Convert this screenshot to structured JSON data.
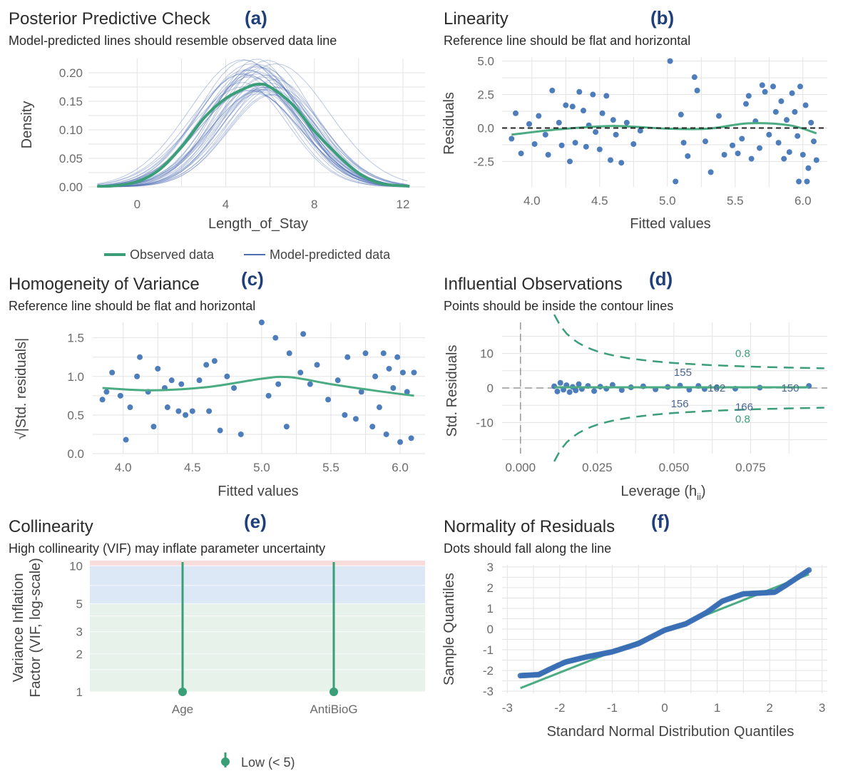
{
  "colors": {
    "observed": "#3a9e78",
    "predicted": "#4f6fb3",
    "points": "#3b6fb5",
    "smooth": "#4bab82",
    "contour": "#3a9e78",
    "text_dark": "#2b2b2b",
    "tag": "#1f3f7a",
    "zone_low": "#e6f2ea",
    "zone_mid": "#dde8f6",
    "zone_high": "#f8dcdc"
  },
  "chart_data": [
    {
      "panel": "(a)",
      "type": "line",
      "title": "Posterior Predictive Check",
      "subtitle": "Model-predicted lines should resemble observed data line",
      "xlabel": "Length_of_Stay",
      "ylabel": "Density",
      "xlim": [
        -2.2,
        13
      ],
      "ylim": [
        0,
        0.225
      ],
      "xticks": [
        0,
        4,
        8,
        12
      ],
      "yticks": [
        "0.00",
        "0.05",
        "0.10",
        "0.15",
        "0.20"
      ],
      "grid": true,
      "observed": {
        "x": [
          -1.8,
          -1,
          0,
          1,
          2,
          3,
          4,
          5,
          5.5,
          6,
          7,
          8,
          9,
          10,
          11,
          12.3
        ],
        "y": [
          0.001,
          0.002,
          0.009,
          0.03,
          0.07,
          0.12,
          0.155,
          0.175,
          0.18,
          0.175,
          0.145,
          0.098,
          0.058,
          0.024,
          0.006,
          0.001
        ]
      },
      "predicted_draws": 38,
      "legend": [
        "Observed data",
        "Model-predicted data"
      ],
      "legend_position": "bottom"
    },
    {
      "panel": "(b)",
      "type": "scatter",
      "title": "Linearity",
      "subtitle": "Reference line should be flat and horizontal",
      "xlabel": "Fitted values",
      "ylabel": "Residuals",
      "xlim": [
        3.78,
        6.18
      ],
      "ylim": [
        -4.4,
        5.3
      ],
      "xticks": [
        "4.0",
        "4.5",
        "5.0",
        "5.5",
        "6.0"
      ],
      "yticks": [
        "-2.5",
        "0.0",
        "2.5",
        "5.0"
      ],
      "reference_line": 0,
      "grid": true,
      "points": [
        [
          3.85,
          -0.8
        ],
        [
          3.88,
          1.1
        ],
        [
          3.92,
          -1.9
        ],
        [
          3.98,
          0.3
        ],
        [
          4.02,
          -1.2
        ],
        [
          4.05,
          0.9
        ],
        [
          4.1,
          -0.5
        ],
        [
          4.12,
          -2.0
        ],
        [
          4.15,
          2.8
        ],
        [
          4.2,
          0.4
        ],
        [
          4.22,
          -1.3
        ],
        [
          4.25,
          1.7
        ],
        [
          4.28,
          -2.5
        ],
        [
          4.3,
          1.6
        ],
        [
          4.32,
          -1.1
        ],
        [
          4.35,
          2.7
        ],
        [
          4.38,
          1.3
        ],
        [
          4.4,
          -1.4
        ],
        [
          4.42,
          0.2
        ],
        [
          4.45,
          2.5
        ],
        [
          4.47,
          -0.3
        ],
        [
          4.5,
          -1.6
        ],
        [
          4.52,
          1.1
        ],
        [
          4.55,
          2.4
        ],
        [
          4.58,
          -2.4
        ],
        [
          4.6,
          0.6
        ],
        [
          4.62,
          -0.5
        ],
        [
          4.66,
          -2.6
        ],
        [
          4.7,
          0.4
        ],
        [
          4.75,
          -1.2
        ],
        [
          4.8,
          -0.2
        ],
        [
          5.02,
          5.0
        ],
        [
          5.06,
          -4.0
        ],
        [
          5.1,
          1.0
        ],
        [
          5.12,
          -1.1
        ],
        [
          5.15,
          -2.1
        ],
        [
          5.2,
          3.8
        ],
        [
          5.22,
          2.8
        ],
        [
          5.28,
          -1.0
        ],
        [
          5.32,
          -3.3
        ],
        [
          5.38,
          0.9
        ],
        [
          5.42,
          -2.0
        ],
        [
          5.48,
          -1.3
        ],
        [
          5.52,
          -1.9
        ],
        [
          5.55,
          -0.8
        ],
        [
          5.58,
          1.8
        ],
        [
          5.6,
          2.4
        ],
        [
          5.62,
          -2.3
        ],
        [
          5.65,
          0.5
        ],
        [
          5.68,
          -1.5
        ],
        [
          5.7,
          3.2
        ],
        [
          5.72,
          2.7
        ],
        [
          5.75,
          -0.5
        ],
        [
          5.78,
          3.1
        ],
        [
          5.8,
          1.2
        ],
        [
          5.82,
          -1.1
        ],
        [
          5.84,
          2.0
        ],
        [
          5.86,
          -2.3
        ],
        [
          5.88,
          0.6
        ],
        [
          5.9,
          -1.8
        ],
        [
          5.92,
          2.6
        ],
        [
          5.94,
          1.2
        ],
        [
          5.96,
          -0.6
        ],
        [
          5.98,
          3.1
        ],
        [
          6.0,
          -2.0
        ],
        [
          6.02,
          1.7
        ],
        [
          6.04,
          -3.0
        ],
        [
          6.06,
          0.4
        ],
        [
          6.08,
          -1.0
        ],
        [
          6.1,
          -2.4
        ],
        [
          5.97,
          -4.0
        ],
        [
          6.03,
          -4.0
        ]
      ],
      "smooth": {
        "x": [
          3.85,
          4.2,
          4.6,
          5.0,
          5.3,
          5.6,
          5.9,
          6.1
        ],
        "y": [
          -0.5,
          -0.1,
          0.15,
          -0.05,
          -0.05,
          0.35,
          0.2,
          -0.4
        ]
      }
    },
    {
      "panel": "(c)",
      "type": "scatter",
      "title": "Homogeneity of Variance",
      "subtitle": "Reference line should be flat and horizontal",
      "xlabel": "Fitted values",
      "ylabel": "√|Std. residuals|",
      "xlim": [
        3.78,
        6.18
      ],
      "ylim": [
        0,
        1.7
      ],
      "xticks": [
        "4.0",
        "4.5",
        "5.0",
        "5.5",
        "6.0"
      ],
      "yticks": [
        "0.0",
        "0.5",
        "1.0",
        "1.5"
      ],
      "grid": true,
      "points": [
        [
          3.85,
          0.7
        ],
        [
          3.88,
          0.8
        ],
        [
          3.92,
          1.05
        ],
        [
          3.98,
          0.75
        ],
        [
          4.02,
          0.18
        ],
        [
          4.05,
          0.6
        ],
        [
          4.1,
          1.0
        ],
        [
          4.12,
          1.25
        ],
        [
          4.18,
          0.8
        ],
        [
          4.22,
          0.35
        ],
        [
          4.25,
          1.1
        ],
        [
          4.3,
          0.85
        ],
        [
          4.32,
          0.6
        ],
        [
          4.35,
          0.95
        ],
        [
          4.4,
          0.55
        ],
        [
          4.42,
          0.9
        ],
        [
          4.45,
          0.5
        ],
        [
          4.5,
          0.55
        ],
        [
          4.55,
          0.95
        ],
        [
          4.6,
          1.15
        ],
        [
          4.62,
          0.55
        ],
        [
          4.66,
          1.2
        ],
        [
          4.7,
          0.3
        ],
        [
          4.75,
          1.0
        ],
        [
          4.8,
          0.85
        ],
        [
          4.85,
          0.25
        ],
        [
          5.0,
          1.7
        ],
        [
          5.05,
          0.75
        ],
        [
          5.1,
          1.5
        ],
        [
          5.12,
          0.9
        ],
        [
          5.18,
          0.35
        ],
        [
          5.2,
          1.3
        ],
        [
          5.28,
          1.05
        ],
        [
          5.3,
          1.55
        ],
        [
          5.35,
          0.9
        ],
        [
          5.4,
          1.15
        ],
        [
          5.48,
          0.7
        ],
        [
          5.55,
          0.95
        ],
        [
          5.6,
          0.5
        ],
        [
          5.62,
          1.25
        ],
        [
          5.68,
          0.45
        ],
        [
          5.72,
          0.8
        ],
        [
          5.75,
          1.3
        ],
        [
          5.8,
          0.35
        ],
        [
          5.82,
          1.0
        ],
        [
          5.85,
          0.6
        ],
        [
          5.88,
          1.3
        ],
        [
          5.9,
          0.25
        ],
        [
          5.92,
          1.1
        ],
        [
          5.95,
          0.85
        ],
        [
          5.98,
          1.25
        ],
        [
          6.0,
          0.15
        ],
        [
          6.02,
          1.05
        ],
        [
          6.05,
          0.8
        ],
        [
          6.08,
          0.2
        ],
        [
          6.1,
          1.05
        ]
      ],
      "smooth": {
        "x": [
          3.85,
          4.2,
          4.6,
          5.0,
          5.2,
          5.5,
          5.8,
          6.1
        ],
        "y": [
          0.85,
          0.82,
          0.86,
          0.97,
          0.99,
          0.9,
          0.82,
          0.75
        ]
      }
    },
    {
      "panel": "(d)",
      "type": "scatter",
      "title": "Influential Observations",
      "subtitle": "Points should be inside the contour lines",
      "xlabel": "Leverage (h",
      "xlabel_subscript": "ii",
      "xlabel_close": ")",
      "ylabel": "Std. Residuals",
      "xlim": [
        -0.006,
        0.1
      ],
      "ylim": [
        -19,
        19
      ],
      "xticks": [
        "0.000",
        "0.025",
        "0.050",
        "0.075"
      ],
      "yticks": [
        "-10",
        "0",
        "10"
      ],
      "contour_label": "0.8",
      "labels": [
        {
          "text": "155",
          "x": 0.05,
          "y": 4.5
        },
        {
          "text": "162",
          "x": 0.061,
          "y": 0
        },
        {
          "text": "150",
          "x": 0.085,
          "y": 0
        },
        {
          "text": "156",
          "x": 0.049,
          "y": -4.5
        },
        {
          "text": "166",
          "x": 0.07,
          "y": -5.5
        }
      ],
      "points": [
        [
          0.011,
          0.5
        ],
        [
          0.012,
          -1
        ],
        [
          0.013,
          1.5
        ],
        [
          0.014,
          -0.5
        ],
        [
          0.015,
          0.8
        ],
        [
          0.016,
          -1.2
        ],
        [
          0.017,
          0.3
        ],
        [
          0.018,
          -0.7
        ],
        [
          0.019,
          1.1
        ],
        [
          0.02,
          -0.3
        ],
        [
          0.022,
          0.6
        ],
        [
          0.024,
          -0.9
        ],
        [
          0.026,
          0.4
        ],
        [
          0.028,
          -0.2
        ],
        [
          0.03,
          0.9
        ],
        [
          0.033,
          -0.6
        ],
        [
          0.036,
          0.2
        ],
        [
          0.04,
          0.5
        ],
        [
          0.044,
          -0.4
        ],
        [
          0.048,
          0.3
        ],
        [
          0.052,
          0.7
        ],
        [
          0.055,
          -0.5
        ],
        [
          0.058,
          0.6
        ],
        [
          0.06,
          -0.3
        ],
        [
          0.064,
          0.2
        ],
        [
          0.07,
          -0.2
        ],
        [
          0.078,
          0.1
        ],
        [
          0.094,
          0.6
        ]
      ]
    },
    {
      "panel": "(e)",
      "type": "bar",
      "title": "Collinearity",
      "subtitle": "High collinearity (VIF) may inflate parameter uncertainty",
      "ylabel_line1": "Variance Inflation",
      "ylabel_line2": "Factor (VIF, log-scale)",
      "categories": [
        "Age",
        "AntiBioG"
      ],
      "values": [
        1.0,
        1.0
      ],
      "yscale": "log",
      "ylim": [
        1,
        11
      ],
      "yticks": [
        "1",
        "2",
        "3",
        "5",
        "10"
      ],
      "legend": "Low (< 5)",
      "legend_position": "bottom"
    },
    {
      "panel": "(f)",
      "type": "scatter",
      "title": "Normality of Residuals",
      "subtitle": "Dots should fall along the line",
      "xlabel": "Standard Normal Distribution Quantiles",
      "ylabel": "Sample Quantiles",
      "xlim": [
        -3.1,
        3.1
      ],
      "ylim": [
        -3.1,
        3.1
      ],
      "xticks": [
        "-3",
        "-2",
        "-1",
        "0",
        "1",
        "2",
        "3"
      ],
      "yticks": [
        "-3",
        "-2",
        "-1",
        "0",
        "1",
        "2",
        "3"
      ],
      "reference": {
        "x": [
          -2.75,
          2.75
        ],
        "y": [
          -2.85,
          2.65
        ]
      },
      "qq_points": {
        "n": 160,
        "anchors_x": [
          -2.75,
          -2.4,
          -2.2,
          -1.9,
          -1.5,
          -1.0,
          -0.5,
          0,
          0.4,
          0.8,
          1.1,
          1.5,
          1.9,
          2.1,
          2.3,
          2.75
        ],
        "anchors_y": [
          -2.25,
          -2.2,
          -1.95,
          -1.6,
          -1.35,
          -1.1,
          -0.7,
          -0.05,
          0.25,
          0.8,
          1.35,
          1.7,
          1.75,
          1.78,
          2.1,
          2.85
        ]
      }
    }
  ]
}
